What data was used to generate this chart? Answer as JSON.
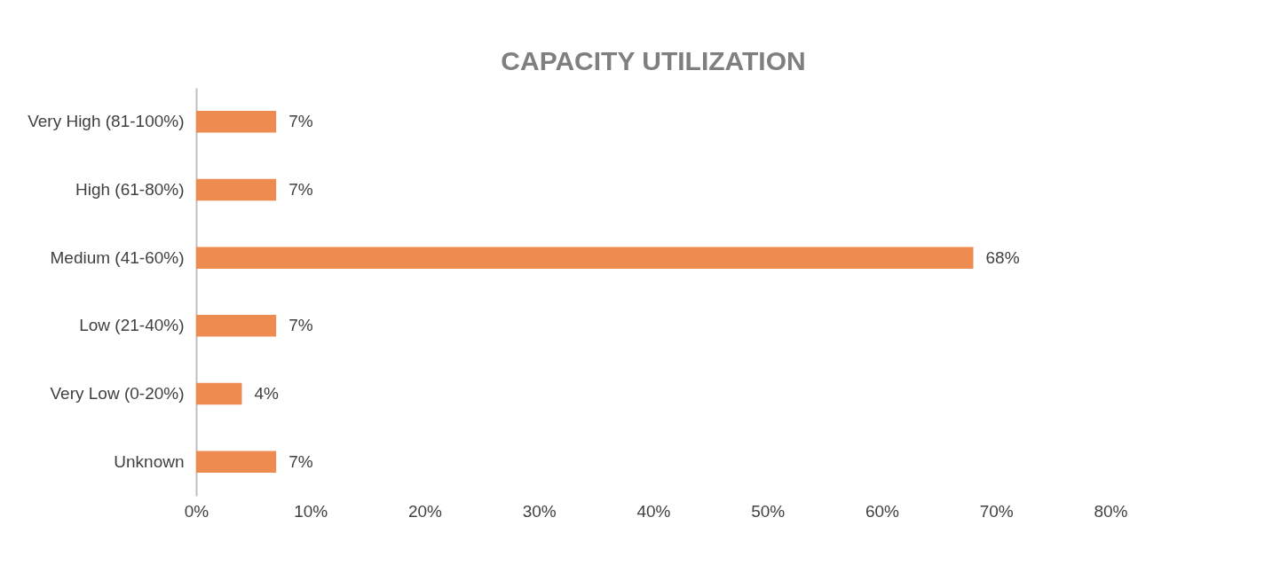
{
  "chart_data": {
    "type": "bar",
    "orientation": "horizontal",
    "title": "CAPACITY UTILIZATION",
    "categories": [
      "Very High (81-100%)",
      "High (61-80%)",
      "Medium (41-60%)",
      "Low (21-40%)",
      "Very Low (0-20%)",
      "Unknown"
    ],
    "values": [
      7,
      7,
      68,
      7,
      4,
      7
    ],
    "value_labels": [
      "7%",
      "7%",
      "68%",
      "7%",
      "4%",
      "7%"
    ],
    "color": "#ed8b50",
    "xlim": [
      0,
      80
    ],
    "xticks": [
      {
        "value": 0,
        "label": "0%"
      },
      {
        "value": 10,
        "label": "10%"
      },
      {
        "value": 20,
        "label": "20%"
      },
      {
        "value": 30,
        "label": "30%"
      },
      {
        "value": 40,
        "label": "40%"
      },
      {
        "value": 50,
        "label": "50%"
      },
      {
        "value": 60,
        "label": "60%"
      },
      {
        "value": 70,
        "label": "70%"
      },
      {
        "value": 80,
        "label": "80%"
      }
    ],
    "grid": false
  }
}
